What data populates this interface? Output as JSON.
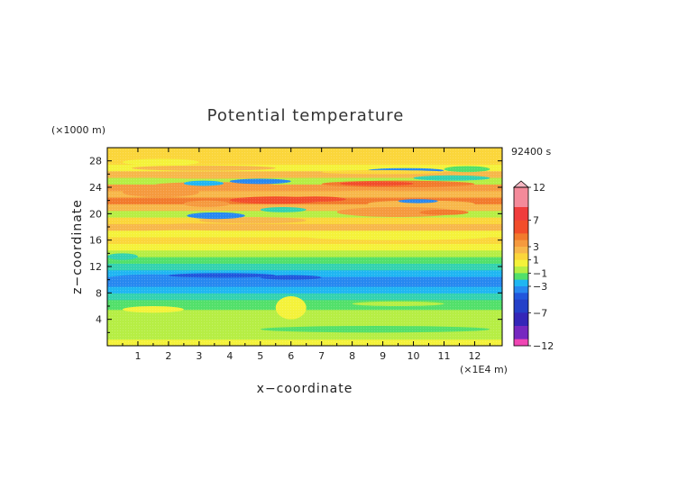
{
  "chart_data": {
    "type": "heatmap",
    "title": "Potential temperature",
    "xlabel": "x−coordinate",
    "ylabel": "z−coordinate",
    "x_unit": "(×1E4 m)",
    "y_unit": "(×1000 m)",
    "time_label": "92400 s",
    "x_ticks": [
      "1",
      "2",
      "3",
      "4",
      "5",
      "6",
      "7",
      "8",
      "9",
      "10",
      "11",
      "12"
    ],
    "y_ticks": [
      "4",
      "8",
      "12",
      "16",
      "20",
      "24",
      "28"
    ],
    "xlim": [
      0,
      12.9
    ],
    "ylim": [
      0,
      30
    ],
    "grid": false,
    "colorbar": {
      "position": "right",
      "labels": [
        "12",
        "7",
        "3",
        "1",
        "−1",
        "−3",
        "−7",
        "−12"
      ],
      "levels": [
        12,
        7,
        3,
        1,
        -1,
        -3,
        -7,
        -12
      ]
    },
    "bands": [
      {
        "z": [
          0,
          1
        ],
        "value": 0.3
      },
      {
        "z": [
          1,
          2
        ],
        "value": -0.3
      },
      {
        "z": [
          2,
          3
        ],
        "value": -0.7
      },
      {
        "z": [
          3,
          4.5
        ],
        "value": -0.1
      },
      {
        "z": [
          4.5,
          5.5
        ],
        "value": -0.6
      },
      {
        "z": [
          5.5,
          7
        ],
        "value": -1.1
      },
      {
        "z": [
          7,
          8
        ],
        "value": -1.7
      },
      {
        "z": [
          8,
          9
        ],
        "value": -2.5
      },
      {
        "z": [
          9,
          10.5
        ],
        "value": -3.3
      },
      {
        "z": [
          10.5,
          11.5
        ],
        "value": -2.4
      },
      {
        "z": [
          11.5,
          12.5
        ],
        "value": -1.8
      },
      {
        "z": [
          12.5,
          13.5
        ],
        "value": -1.3
      },
      {
        "z": [
          13.5,
          14.5
        ],
        "value": -0.6
      },
      {
        "z": [
          14.5,
          15.5
        ],
        "value": 0.4
      },
      {
        "z": [
          15.5,
          16.5
        ],
        "value": 1.2
      },
      {
        "z": [
          16.5,
          17.5
        ],
        "value": 0.7
      },
      {
        "z": [
          17.5,
          18.5
        ],
        "value": 2.2
      },
      {
        "z": [
          18.5,
          19.5
        ],
        "value": 1.2
      },
      {
        "z": [
          19.5,
          20.5
        ],
        "value": -0.6
      },
      {
        "z": [
          20.5,
          21.5
        ],
        "value": 2.6
      },
      {
        "z": [
          21.5,
          22.5
        ],
        "value": 4.0
      },
      {
        "z": [
          22.5,
          23.5
        ],
        "value": 2.6
      },
      {
        "z": [
          23.5,
          24.5
        ],
        "value": 3.4
      },
      {
        "z": [
          24.5,
          25.5
        ],
        "value": -0.8
      },
      {
        "z": [
          25.5,
          26.5
        ],
        "value": 2.1
      },
      {
        "z": [
          26.5,
          27.5
        ],
        "value": 0.7
      },
      {
        "z": [
          27.5,
          30
        ],
        "value": 1.2
      }
    ],
    "features": [
      {
        "x": [
          6.5,
          12.5
        ],
        "z": [
          16,
          17
        ],
        "value": 0.7
      },
      {
        "x": [
          0.5,
          4.5
        ],
        "z": [
          16.5,
          17.5
        ],
        "value": 0.8
      },
      {
        "x": [
          1.2,
          4.8
        ],
        "z": [
          17.5,
          18.5
        ],
        "value": 2.6
      },
      {
        "x": [
          3.0,
          6.5
        ],
        "z": [
          18.5,
          19.5
        ],
        "value": 2.5
      },
      {
        "x": [
          2.6,
          4.5
        ],
        "z": [
          19.2,
          20.2
        ],
        "value": -3.5
      },
      {
        "x": [
          5.0,
          6.5
        ],
        "z": [
          20.2,
          21.0
        ],
        "value": -2.0
      },
      {
        "x": [
          7.5,
          11.5
        ],
        "z": [
          19.5,
          21.0
        ],
        "value": 3.5
      },
      {
        "x": [
          10.2,
          11.8
        ],
        "z": [
          19.8,
          20.6
        ],
        "value": 4.5
      },
      {
        "x": [
          2.5,
          4.0
        ],
        "z": [
          21.0,
          22.0
        ],
        "value": 3.6
      },
      {
        "x": [
          4.0,
          7.0
        ],
        "z": [
          21.5,
          22.6
        ],
        "value": 5.3
      },
      {
        "x": [
          5.8,
          7.8
        ],
        "z": [
          21.8,
          22.6
        ],
        "value": 5.8
      },
      {
        "x": [
          8.5,
          12.0
        ],
        "z": [
          21.0,
          22.0
        ],
        "value": 2.7
      },
      {
        "x": [
          9.5,
          10.8
        ],
        "z": [
          21.6,
          22.2
        ],
        "value": -3.5
      },
      {
        "x": [
          7.0,
          10.0
        ],
        "z": [
          22.5,
          23.5
        ],
        "value": 2.8
      },
      {
        "x": [
          0.5,
          3.0
        ],
        "z": [
          22.5,
          24.0
        ],
        "value": 3.5
      },
      {
        "x": [
          1.5,
          5.5
        ],
        "z": [
          23.8,
          24.8
        ],
        "value": 3.2
      },
      {
        "x": [
          4.0,
          6.0
        ],
        "z": [
          24.5,
          25.3
        ],
        "value": -3.5
      },
      {
        "x": [
          2.5,
          3.8
        ],
        "z": [
          24.2,
          25.0
        ],
        "value": -2.3
      },
      {
        "x": [
          7.0,
          12.0
        ],
        "z": [
          24.0,
          25.0
        ],
        "value": 4.2
      },
      {
        "x": [
          7.6,
          10.0
        ],
        "z": [
          24.2,
          24.9
        ],
        "value": 6.8
      },
      {
        "x": [
          10.0,
          12.5
        ],
        "z": [
          25.0,
          25.8
        ],
        "value": -2.0
      },
      {
        "x": [
          0.5,
          6.5
        ],
        "z": [
          25.3,
          26.3
        ],
        "value": 2.3
      },
      {
        "x": [
          0.8,
          5.5
        ],
        "z": [
          26.5,
          27.3
        ],
        "value": 2.6
      },
      {
        "x": [
          8.5,
          11.0
        ],
        "z": [
          26.2,
          26.9
        ],
        "value": -3.5
      },
      {
        "x": [
          7.0,
          11.0
        ],
        "z": [
          26.0,
          26.6
        ],
        "value": 1.4
      },
      {
        "x": [
          11.0,
          12.5
        ],
        "z": [
          26.3,
          27.2
        ],
        "value": -1.4
      },
      {
        "x": [
          0.5,
          3.0
        ],
        "z": [
          27.3,
          28.3
        ],
        "value": 0.9
      },
      {
        "x": [
          0.0,
          3.0
        ],
        "z": [
          9.6,
          10.8
        ],
        "value": -4.0
      },
      {
        "x": [
          2.0,
          5.5
        ],
        "z": [
          10.3,
          11.0
        ],
        "value": -5.0
      },
      {
        "x": [
          5.0,
          7.0
        ],
        "z": [
          10.0,
          10.7
        ],
        "value": -4.2
      },
      {
        "x": [
          7.5,
          10.0
        ],
        "z": [
          9.4,
          10.2
        ],
        "value": -4.0
      },
      {
        "x": [
          10.5,
          12.9
        ],
        "z": [
          9.2,
          10.0
        ],
        "value": -4.0
      },
      {
        "x": [
          0.5,
          5.0
        ],
        "z": [
          1.0,
          2.0
        ],
        "value": -0.8
      },
      {
        "x": [
          5.0,
          12.5
        ],
        "z": [
          2.0,
          3.0
        ],
        "value": -1.1
      },
      {
        "x": [
          1.5,
          5.0
        ],
        "z": [
          3.5,
          4.3
        ],
        "value": -0.9
      },
      {
        "x": [
          6.0,
          10.0
        ],
        "z": [
          4.0,
          4.8
        ],
        "value": -0.6
      },
      {
        "x": [
          11.5,
          12.9
        ],
        "z": [
          4.0,
          5.0
        ],
        "value": -0.9
      },
      {
        "x": [
          0.5,
          2.5
        ],
        "z": [
          5.0,
          6.0
        ],
        "value": 0.2
      },
      {
        "x": [
          8.0,
          11.0
        ],
        "z": [
          6.0,
          6.7
        ],
        "value": -0.6
      },
      {
        "x": [
          0.0,
          1.0
        ],
        "z": [
          13.0,
          14.0
        ],
        "value": -1.8
      },
      {
        "x": [
          5.5,
          6.5
        ],
        "z": [
          4.0,
          7.5
        ],
        "value": 0.5
      }
    ]
  }
}
